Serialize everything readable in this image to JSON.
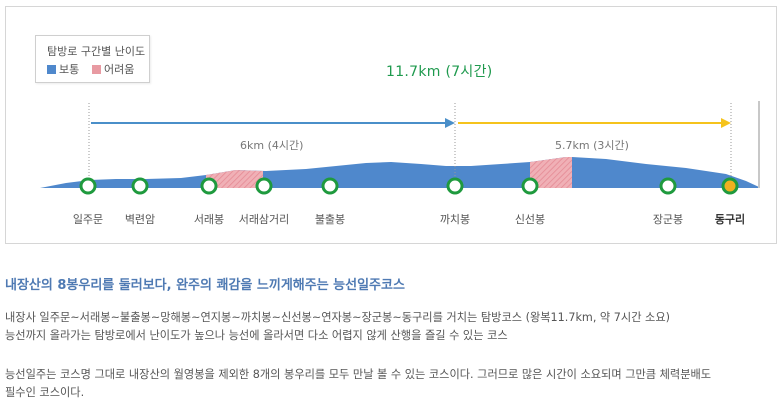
{
  "legend": {
    "title": "탐방로 구간별 난이도",
    "items": [
      {
        "label": "보통",
        "color": "#4f88cc"
      },
      {
        "label": "어려움",
        "color": "#e89aa2"
      }
    ]
  },
  "total": "11.7km (7시간)",
  "segments": [
    {
      "label": "6km (4시간)",
      "color": "#4a8fc9"
    },
    {
      "label": "5.7km (3시간)",
      "color": "#f5c31c"
    }
  ],
  "peaks": [
    {
      "name": "일주문"
    },
    {
      "name": "벽련암"
    },
    {
      "name": "서래봉"
    },
    {
      "name": "서래삼거리"
    },
    {
      "name": "불출봉"
    },
    {
      "name": "까치봉"
    },
    {
      "name": "신선봉"
    },
    {
      "name": "장군봉"
    },
    {
      "name": "동구리",
      "end": true
    }
  ],
  "content": {
    "title": "내장산의 8봉우리를 둘러보다, 완주의 쾌감을 느끼게해주는 능선일주코스",
    "p1_line1": "내장사 일주문~서래봉~불출봉~망해봉~연지봉~까치봉~신선봉~연자봉~장군봉~동구리를 거치는 탐방코스 (왕복11.7km, 약 7시간 소요)",
    "p1_line2": "능선까지 올라가는 탐방로에서 난이도가 높으나 능선에 올라서면 다소 어렵지 않게 산행을 즐길 수 있는 코스",
    "p2_line1": "능선일주는 코스명 그대로 내장산의 월영봉을 제외한 8개의 봉우리를 모두 만날 볼 수 있는 코스이다. 그러므로 많은 시간이 소요되며 그만큼 체력분배도",
    "p2_line2": "필수인 코스이다."
  },
  "colors": {
    "normal": "#4f88cc",
    "hard": "#e89aa2",
    "marker": "#1f9a3e",
    "end_marker": "#f0b020",
    "accent_green": "#1f9a4e",
    "title_blue": "#4f7ab3"
  }
}
